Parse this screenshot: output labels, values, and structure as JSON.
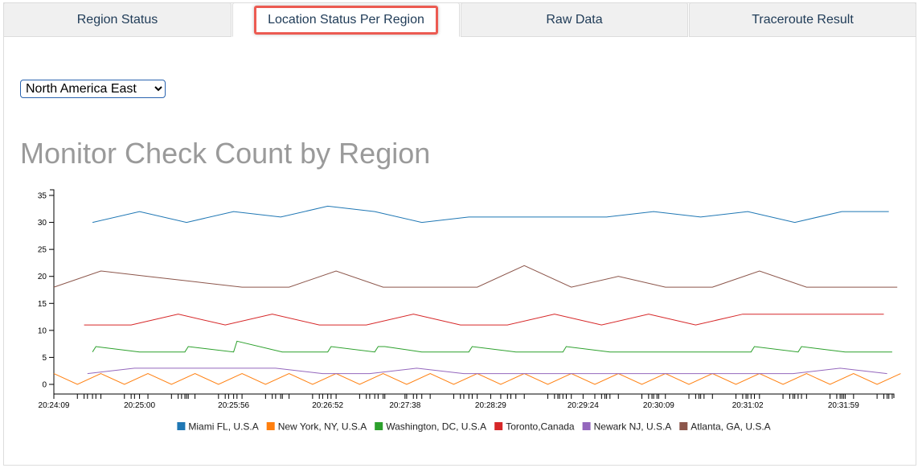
{
  "tabs": [
    {
      "label": "Region Status",
      "active": false
    },
    {
      "label": "Location Status Per Region",
      "active": true
    },
    {
      "label": "Raw Data",
      "active": false
    },
    {
      "label": "Traceroute Result",
      "active": false
    }
  ],
  "region_select": {
    "selected": "North America East"
  },
  "chart_data": {
    "type": "line",
    "title": "Monitor Check Count by Region",
    "xlabel": "",
    "ylabel": "",
    "ylim": [
      0,
      35
    ],
    "y_ticks": [
      0,
      5,
      10,
      15,
      20,
      25,
      30,
      35
    ],
    "x_range": [
      "20:24:09",
      "20:32:29"
    ],
    "x_tick_labels": [
      "20:24:09",
      "20:25:00",
      "20:25:56",
      "20:26:52",
      "20:27:38",
      "20:28:29",
      "20:29:24",
      "20:30:09",
      "20:31:02",
      "20:31:59"
    ],
    "grid": false,
    "legend_position": "bottom",
    "series": [
      {
        "name": "Miami FL, U.S.A",
        "color": "#1f77b4",
        "points": [
          [
            "20:24:32",
            30
          ],
          [
            "20:25:00",
            32
          ],
          [
            "20:25:28",
            30
          ],
          [
            "20:25:56",
            32
          ],
          [
            "20:26:24",
            31
          ],
          [
            "20:26:52",
            33
          ],
          [
            "20:27:20",
            32
          ],
          [
            "20:27:48",
            30
          ],
          [
            "20:28:16",
            31
          ],
          [
            "20:29:10",
            31
          ],
          [
            "20:29:38",
            31
          ],
          [
            "20:30:06",
            32
          ],
          [
            "20:30:34",
            31
          ],
          [
            "20:31:02",
            32
          ],
          [
            "20:31:30",
            30
          ],
          [
            "20:31:58",
            32
          ],
          [
            "20:32:26",
            32
          ]
        ]
      },
      {
        "name": "New York, NY, U.S.A",
        "color": "#ff7f0e",
        "points": [
          [
            "20:24:09",
            2
          ],
          [
            "20:24:23",
            0
          ],
          [
            "20:24:37",
            2
          ],
          [
            "20:24:51",
            0
          ],
          [
            "20:25:05",
            2
          ],
          [
            "20:25:19",
            0
          ],
          [
            "20:25:33",
            2
          ],
          [
            "20:25:47",
            0
          ],
          [
            "20:26:01",
            2
          ],
          [
            "20:26:15",
            0
          ],
          [
            "20:26:29",
            2
          ],
          [
            "20:26:43",
            0
          ],
          [
            "20:26:57",
            2
          ],
          [
            "20:27:11",
            0
          ],
          [
            "20:27:25",
            2
          ],
          [
            "20:27:39",
            0
          ],
          [
            "20:27:53",
            2
          ],
          [
            "20:28:07",
            0
          ],
          [
            "20:28:21",
            2
          ],
          [
            "20:28:35",
            0
          ],
          [
            "20:28:49",
            2
          ],
          [
            "20:29:03",
            0
          ],
          [
            "20:29:17",
            2
          ],
          [
            "20:29:31",
            0
          ],
          [
            "20:29:45",
            2
          ],
          [
            "20:29:59",
            0
          ],
          [
            "20:30:13",
            2
          ],
          [
            "20:30:27",
            0
          ],
          [
            "20:30:41",
            2
          ],
          [
            "20:30:55",
            0
          ],
          [
            "20:31:09",
            2
          ],
          [
            "20:31:23",
            0
          ],
          [
            "20:31:37",
            2
          ],
          [
            "20:31:51",
            0
          ],
          [
            "20:32:05",
            2
          ],
          [
            "20:32:19",
            0
          ],
          [
            "20:32:33",
            2
          ]
        ]
      },
      {
        "name": "Washington, DC, U.S.A",
        "color": "#2ca02c",
        "points": [
          [
            "20:24:32",
            6
          ],
          [
            "20:24:34",
            7
          ],
          [
            "20:25:00",
            6
          ],
          [
            "20:25:27",
            6
          ],
          [
            "20:25:29",
            7
          ],
          [
            "20:25:56",
            6
          ],
          [
            "20:25:58",
            8
          ],
          [
            "20:26:25",
            6
          ],
          [
            "20:26:52",
            6
          ],
          [
            "20:26:54",
            7
          ],
          [
            "20:27:20",
            6
          ],
          [
            "20:27:22",
            7
          ],
          [
            "20:27:26",
            7
          ],
          [
            "20:27:48",
            6
          ],
          [
            "20:28:16",
            6
          ],
          [
            "20:28:18",
            7
          ],
          [
            "20:28:44",
            6
          ],
          [
            "20:29:12",
            6
          ],
          [
            "20:29:14",
            7
          ],
          [
            "20:29:40",
            6
          ],
          [
            "20:30:08",
            6
          ],
          [
            "20:30:36",
            6
          ],
          [
            "20:31:04",
            6
          ],
          [
            "20:31:06",
            7
          ],
          [
            "20:31:32",
            6
          ],
          [
            "20:31:34",
            7
          ],
          [
            "20:32:00",
            6
          ],
          [
            "20:32:28",
            6
          ]
        ]
      },
      {
        "name": "Toronto,Canada",
        "color": "#d62728",
        "points": [
          [
            "20:24:27",
            11
          ],
          [
            "20:24:55",
            11
          ],
          [
            "20:25:23",
            13
          ],
          [
            "20:25:51",
            11
          ],
          [
            "20:26:19",
            13
          ],
          [
            "20:26:47",
            11
          ],
          [
            "20:27:15",
            11
          ],
          [
            "20:27:43",
            13
          ],
          [
            "20:28:11",
            11
          ],
          [
            "20:28:39",
            11
          ],
          [
            "20:29:07",
            13
          ],
          [
            "20:29:35",
            11
          ],
          [
            "20:30:03",
            13
          ],
          [
            "20:30:31",
            11
          ],
          [
            "20:30:59",
            13
          ],
          [
            "20:31:27",
            13
          ],
          [
            "20:31:55",
            13
          ],
          [
            "20:32:23",
            13
          ]
        ]
      },
      {
        "name": "Newark NJ, U.S.A",
        "color": "#9467bd",
        "points": [
          [
            "20:24:29",
            2
          ],
          [
            "20:24:57",
            3
          ],
          [
            "20:25:25",
            3
          ],
          [
            "20:25:53",
            3
          ],
          [
            "20:26:21",
            3
          ],
          [
            "20:26:49",
            2
          ],
          [
            "20:27:17",
            2
          ],
          [
            "20:27:45",
            3
          ],
          [
            "20:28:13",
            2
          ],
          [
            "20:28:41",
            2
          ],
          [
            "20:29:09",
            2
          ],
          [
            "20:29:37",
            2
          ],
          [
            "20:30:05",
            2
          ],
          [
            "20:30:33",
            2
          ],
          [
            "20:31:01",
            2
          ],
          [
            "20:31:29",
            2
          ],
          [
            "20:31:57",
            3
          ],
          [
            "20:32:25",
            2
          ]
        ]
      },
      {
        "name": "Atlanta, GA, U.S.A",
        "color": "#8c564b",
        "points": [
          [
            "20:24:09",
            18
          ],
          [
            "20:24:37",
            21
          ],
          [
            "20:25:05",
            20
          ],
          [
            "20:25:33",
            19
          ],
          [
            "20:26:01",
            18
          ],
          [
            "20:26:29",
            18
          ],
          [
            "20:26:57",
            21
          ],
          [
            "20:27:25",
            18
          ],
          [
            "20:27:53",
            18
          ],
          [
            "20:28:21",
            18
          ],
          [
            "20:28:49",
            22
          ],
          [
            "20:29:17",
            18
          ],
          [
            "20:29:45",
            20
          ],
          [
            "20:30:13",
            18
          ],
          [
            "20:30:41",
            18
          ],
          [
            "20:31:09",
            21
          ],
          [
            "20:31:37",
            18
          ],
          [
            "20:32:05",
            18
          ],
          [
            "20:32:31",
            18
          ]
        ]
      }
    ]
  }
}
